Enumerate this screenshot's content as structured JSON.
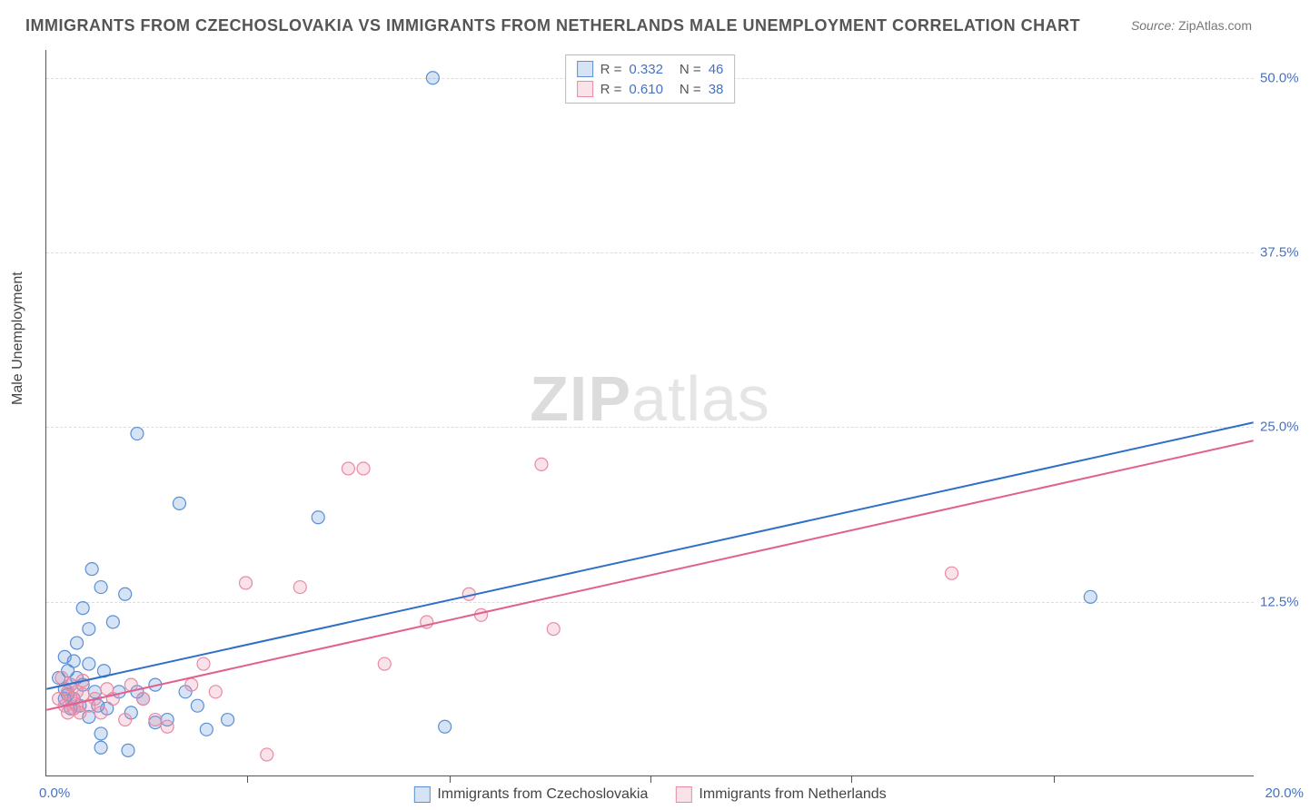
{
  "title": "IMMIGRANTS FROM CZECHOSLOVAKIA VS IMMIGRANTS FROM NETHERLANDS MALE UNEMPLOYMENT CORRELATION CHART",
  "source_label": "Source:",
  "source_value": "ZipAtlas.com",
  "ylabel": "Male Unemployment",
  "watermark_a": "ZIP",
  "watermark_b": "atlas",
  "chart": {
    "type": "scatter",
    "xlim": [
      0,
      20
    ],
    "ylim": [
      0,
      52
    ],
    "xlim_left_label": "0.0%",
    "xlim_right_label": "20.0%",
    "yticks": [
      {
        "v": 12.5,
        "label": "12.5%"
      },
      {
        "v": 25.0,
        "label": "25.0%"
      },
      {
        "v": 37.5,
        "label": "37.5%"
      },
      {
        "v": 50.0,
        "label": "50.0%"
      }
    ],
    "xticks": [
      3.33,
      6.67,
      10.0,
      13.33,
      16.67
    ],
    "background_color": "#ffffff",
    "grid_color": "#dddddd",
    "marker_radius": 7,
    "marker_fill_opacity": 0.25,
    "line_width": 2,
    "series": [
      {
        "name": "Immigrants from Czechoslovakia",
        "color": "#5a8fd6",
        "line_color": "#2f6fc8",
        "r_value": "0.332",
        "n_value": "46",
        "regression": {
          "x1": 0,
          "y1": 6.2,
          "x2": 20,
          "y2": 25.3
        },
        "points": [
          [
            0.2,
            7.0
          ],
          [
            0.3,
            6.2
          ],
          [
            0.3,
            5.5
          ],
          [
            0.3,
            8.5
          ],
          [
            0.35,
            7.5
          ],
          [
            0.35,
            5.8
          ],
          [
            0.4,
            6.5
          ],
          [
            0.4,
            4.8
          ],
          [
            0.45,
            8.2
          ],
          [
            0.45,
            5.5
          ],
          [
            0.5,
            9.5
          ],
          [
            0.5,
            7.0
          ],
          [
            0.55,
            5.0
          ],
          [
            0.6,
            12.0
          ],
          [
            0.6,
            6.5
          ],
          [
            0.7,
            8.0
          ],
          [
            0.7,
            10.5
          ],
          [
            0.7,
            4.2
          ],
          [
            0.75,
            14.8
          ],
          [
            0.8,
            6.0
          ],
          [
            0.85,
            5.0
          ],
          [
            0.9,
            13.5
          ],
          [
            0.9,
            3.0
          ],
          [
            0.9,
            2.0
          ],
          [
            0.95,
            7.5
          ],
          [
            1.0,
            4.8
          ],
          [
            1.1,
            11.0
          ],
          [
            1.2,
            6.0
          ],
          [
            1.3,
            13.0
          ],
          [
            1.35,
            1.8
          ],
          [
            1.4,
            4.5
          ],
          [
            1.5,
            6.0
          ],
          [
            1.5,
            24.5
          ],
          [
            1.6,
            5.5
          ],
          [
            1.8,
            3.8
          ],
          [
            1.8,
            6.5
          ],
          [
            2.0,
            4.0
          ],
          [
            2.2,
            19.5
          ],
          [
            2.3,
            6.0
          ],
          [
            2.5,
            5.0
          ],
          [
            3.0,
            4.0
          ],
          [
            4.5,
            18.5
          ],
          [
            6.4,
            50.0
          ],
          [
            6.6,
            3.5
          ],
          [
            17.3,
            12.8
          ],
          [
            2.65,
            3.3
          ]
        ]
      },
      {
        "name": "Immigrants from Netherlands",
        "color": "#e88aa5",
        "line_color": "#e06090",
        "r_value": "0.610",
        "n_value": "38",
        "regression": {
          "x1": 0,
          "y1": 4.7,
          "x2": 20,
          "y2": 24.0
        },
        "points": [
          [
            0.2,
            5.5
          ],
          [
            0.25,
            7.0
          ],
          [
            0.3,
            5.0
          ],
          [
            0.35,
            6.0
          ],
          [
            0.35,
            4.5
          ],
          [
            0.4,
            5.5
          ],
          [
            0.4,
            6.5
          ],
          [
            0.45,
            4.8
          ],
          [
            0.5,
            6.0
          ],
          [
            0.5,
            5.0
          ],
          [
            0.55,
            4.5
          ],
          [
            0.6,
            5.8
          ],
          [
            0.6,
            6.8
          ],
          [
            0.7,
            5.0
          ],
          [
            0.8,
            5.5
          ],
          [
            0.9,
            4.5
          ],
          [
            1.0,
            6.2
          ],
          [
            1.1,
            5.5
          ],
          [
            1.3,
            4.0
          ],
          [
            1.4,
            6.5
          ],
          [
            1.6,
            5.5
          ],
          [
            1.8,
            4.0
          ],
          [
            2.0,
            3.5
          ],
          [
            2.4,
            6.5
          ],
          [
            2.6,
            8.0
          ],
          [
            3.3,
            13.8
          ],
          [
            3.65,
            1.5
          ],
          [
            4.2,
            13.5
          ],
          [
            5.0,
            22.0
          ],
          [
            5.25,
            22.0
          ],
          [
            5.6,
            8.0
          ],
          [
            6.3,
            11.0
          ],
          [
            7.0,
            13.0
          ],
          [
            7.2,
            11.5
          ],
          [
            8.2,
            22.3
          ],
          [
            8.4,
            10.5
          ],
          [
            15.0,
            14.5
          ],
          [
            2.8,
            6.0
          ]
        ]
      }
    ],
    "legend_top": {
      "r_label": "R =",
      "n_label": "N ="
    },
    "legend_bottom": [
      "Immigrants from Czechoslovakia",
      "Immigrants from Netherlands"
    ]
  }
}
